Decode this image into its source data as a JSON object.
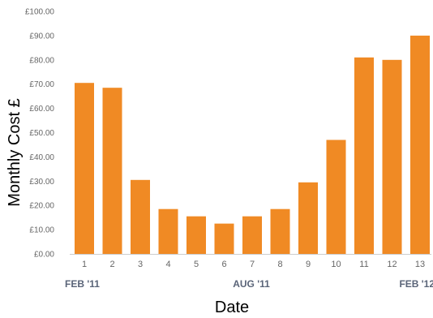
{
  "chart_data": {
    "type": "bar",
    "title": "",
    "xlabel": "Date",
    "ylabel": "Monthly Cost £",
    "categories": [
      "1",
      "2",
      "3",
      "4",
      "5",
      "6",
      "7",
      "8",
      "9",
      "10",
      "11",
      "12",
      "13"
    ],
    "values": [
      70.5,
      68.5,
      30.5,
      18.5,
      15.5,
      12.5,
      15.5,
      18.5,
      29.5,
      47.0,
      81.0,
      80.0,
      90.0
    ],
    "ylim": [
      0,
      100
    ],
    "y_ticks": [
      "£0.00",
      "£10.00",
      "£20.00",
      "£30.00",
      "£40.00",
      "£50.00",
      "£60.00",
      "£70.00",
      "£80.00",
      "£90.00",
      "£100.00"
    ],
    "period_labels": {
      "start": "FEB '11",
      "middle": "AUG '11",
      "end": "FEB '12"
    },
    "grid": false,
    "bar_color": "#f08a24"
  }
}
